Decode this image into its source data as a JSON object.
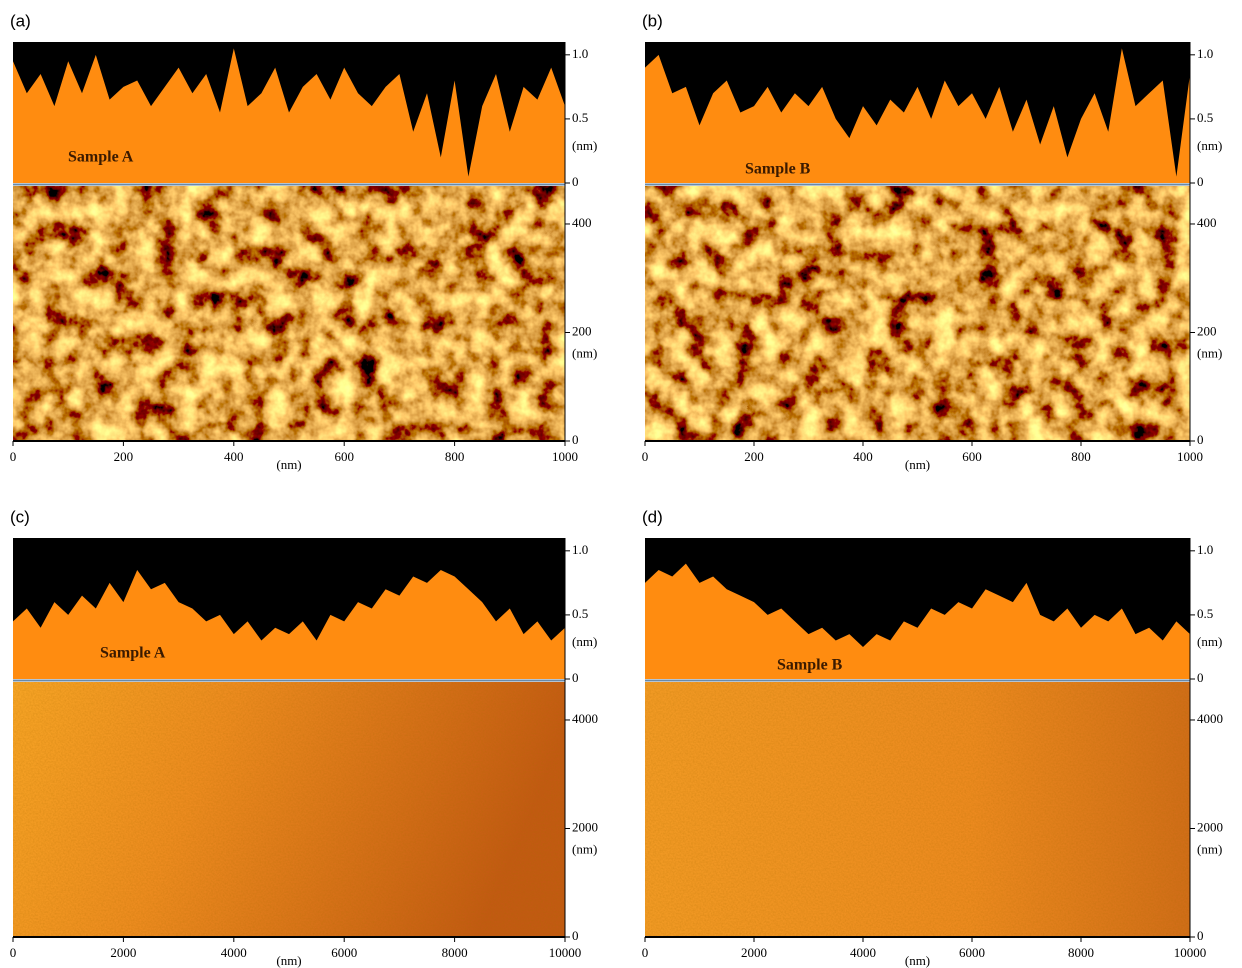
{
  "chart_data": [
    {
      "type": "afm",
      "panel_label": "(a)",
      "sample_label": "Sample A",
      "profile": {
        "x": [
          0,
          25,
          50,
          75,
          100,
          125,
          150,
          175,
          200,
          225,
          250,
          275,
          300,
          325,
          350,
          375,
          400,
          425,
          450,
          475,
          500,
          525,
          550,
          575,
          600,
          625,
          650,
          675,
          700,
          725,
          750,
          775,
          800,
          825,
          850,
          875,
          900,
          925,
          950,
          975,
          1000
        ],
        "values": [
          0.95,
          0.7,
          0.85,
          0.6,
          0.95,
          0.7,
          1.0,
          0.65,
          0.75,
          0.8,
          0.6,
          0.75,
          0.9,
          0.7,
          0.85,
          0.55,
          1.05,
          0.6,
          0.7,
          0.9,
          0.55,
          0.75,
          0.85,
          0.65,
          0.9,
          0.7,
          0.6,
          0.75,
          0.85,
          0.4,
          0.7,
          0.2,
          0.8,
          0.05,
          0.6,
          0.85,
          0.4,
          0.75,
          0.65,
          0.9,
          0.6
        ],
        "ylim": [
          0,
          1.1
        ],
        "yticks": [
          0,
          0.5,
          {
            "value": 1,
            "label": "1.0"
          }
        ],
        "ylabel": "(nm)"
      },
      "xlim": [
        0,
        1000
      ],
      "xticks": [
        0,
        200,
        400,
        600,
        800,
        1000
      ],
      "xlabel": "(nm)",
      "ylim": [
        0,
        470
      ],
      "yticks": [
        0,
        200,
        400
      ],
      "ylabel": "(nm)"
    },
    {
      "type": "afm",
      "panel_label": "(b)",
      "sample_label": "Sample B",
      "profile": {
        "x": [
          0,
          25,
          50,
          75,
          100,
          125,
          150,
          175,
          200,
          225,
          250,
          275,
          300,
          325,
          350,
          375,
          400,
          425,
          450,
          475,
          500,
          525,
          550,
          575,
          600,
          625,
          650,
          675,
          700,
          725,
          750,
          775,
          800,
          825,
          850,
          875,
          900,
          925,
          950,
          975,
          1000
        ],
        "values": [
          0.9,
          1.0,
          0.7,
          0.75,
          0.45,
          0.7,
          0.8,
          0.55,
          0.6,
          0.75,
          0.55,
          0.7,
          0.6,
          0.75,
          0.5,
          0.35,
          0.6,
          0.45,
          0.65,
          0.55,
          0.75,
          0.5,
          0.8,
          0.6,
          0.7,
          0.5,
          0.75,
          0.4,
          0.65,
          0.3,
          0.6,
          0.2,
          0.5,
          0.7,
          0.4,
          1.05,
          0.6,
          0.7,
          0.8,
          0.05,
          0.85
        ],
        "ylim": [
          0,
          1.1
        ],
        "yticks": [
          0,
          0.5,
          {
            "value": 1,
            "label": "1.0"
          }
        ],
        "ylabel": "(nm)"
      },
      "xlim": [
        0,
        1000
      ],
      "xticks": [
        0,
        200,
        400,
        600,
        800,
        1000
      ],
      "xlabel": "(nm)",
      "ylim": [
        0,
        470
      ],
      "yticks": [
        0,
        200,
        400
      ],
      "ylabel": "(nm)"
    },
    {
      "type": "afm",
      "panel_label": "(c)",
      "sample_label": "Sample A",
      "profile": {
        "x": [
          0,
          250,
          500,
          750,
          1000,
          1250,
          1500,
          1750,
          2000,
          2250,
          2500,
          2750,
          3000,
          3250,
          3500,
          3750,
          4000,
          4250,
          4500,
          4750,
          5000,
          5250,
          5500,
          5750,
          6000,
          6250,
          6500,
          6750,
          7000,
          7250,
          7500,
          7750,
          8000,
          8250,
          8500,
          8750,
          9000,
          9250,
          9500,
          9750,
          10000
        ],
        "values": [
          0.45,
          0.55,
          0.4,
          0.6,
          0.5,
          0.65,
          0.55,
          0.75,
          0.6,
          0.85,
          0.7,
          0.75,
          0.6,
          0.55,
          0.45,
          0.5,
          0.35,
          0.45,
          0.3,
          0.4,
          0.35,
          0.45,
          0.3,
          0.5,
          0.45,
          0.6,
          0.55,
          0.7,
          0.65,
          0.8,
          0.75,
          0.85,
          0.8,
          0.7,
          0.6,
          0.45,
          0.55,
          0.35,
          0.45,
          0.3,
          0.4
        ],
        "ylim": [
          0,
          1.1
        ],
        "yticks": [
          0,
          0.5,
          {
            "value": 1,
            "label": "1.0"
          }
        ],
        "ylabel": "(nm)"
      },
      "xlim": [
        0,
        10000
      ],
      "xticks": [
        0,
        2000,
        4000,
        6000,
        8000,
        10000
      ],
      "xlabel": "(nm)",
      "ylim": [
        0,
        4700
      ],
      "yticks": [
        0,
        2000,
        4000
      ],
      "ylabel": "(nm)"
    },
    {
      "type": "afm",
      "panel_label": "(d)",
      "sample_label": "Sample B",
      "profile": {
        "x": [
          0,
          250,
          500,
          750,
          1000,
          1250,
          1500,
          1750,
          2000,
          2250,
          2500,
          2750,
          3000,
          3250,
          3500,
          3750,
          4000,
          4250,
          4500,
          4750,
          5000,
          5250,
          5500,
          5750,
          6000,
          6250,
          6500,
          6750,
          7000,
          7250,
          7500,
          7750,
          8000,
          8250,
          8500,
          8750,
          9000,
          9250,
          9500,
          9750,
          10000
        ],
        "values": [
          0.75,
          0.85,
          0.8,
          0.9,
          0.75,
          0.8,
          0.7,
          0.65,
          0.6,
          0.5,
          0.55,
          0.45,
          0.35,
          0.4,
          0.3,
          0.35,
          0.25,
          0.35,
          0.3,
          0.45,
          0.4,
          0.55,
          0.5,
          0.6,
          0.55,
          0.7,
          0.65,
          0.6,
          0.75,
          0.5,
          0.45,
          0.55,
          0.4,
          0.5,
          0.45,
          0.55,
          0.35,
          0.4,
          0.3,
          0.45,
          0.35
        ],
        "ylim": [
          0,
          1.1
        ],
        "yticks": [
          0,
          0.5,
          {
            "value": 1,
            "label": "1.0"
          }
        ],
        "ylabel": "(nm)"
      },
      "xlim": [
        0,
        10000
      ],
      "xticks": [
        0,
        2000,
        4000,
        6000,
        8000,
        10000
      ],
      "xlabel": "(nm)",
      "ylim": [
        0,
        4700
      ],
      "yticks": [
        0,
        2000,
        4000
      ],
      "ylabel": "(nm)"
    }
  ]
}
